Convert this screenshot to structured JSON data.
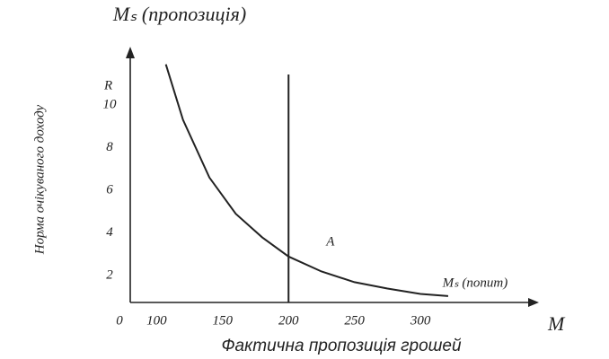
{
  "chart_data": {
    "type": "line",
    "y_end_label": "R",
    "x_end_label": "M",
    "origin_label": "0",
    "ylabel": "Норма очікуваного доходу",
    "xlabel": "Фактична пропозиція грошей",
    "xlim": [
      80,
      383
    ],
    "ylim": [
      0.75,
      12.6
    ],
    "xticks": [
      100,
      150,
      200,
      250,
      300
    ],
    "yticks": [
      2,
      4,
      6,
      8,
      10
    ],
    "series": [
      {
        "name": "Mₛ (попит)",
        "color": "#222222",
        "x": [
          107,
          120,
          140,
          160,
          180,
          200,
          225,
          250,
          275,
          300,
          321
        ],
        "values": [
          11.9,
          9.3,
          6.6,
          4.9,
          3.8,
          2.9,
          2.2,
          1.7,
          1.4,
          1.15,
          1.05
        ]
      }
    ],
    "vline": {
      "x": 200,
      "label": "Mₛ (пропозиція)",
      "color": "#222222"
    },
    "point_label": "A"
  }
}
